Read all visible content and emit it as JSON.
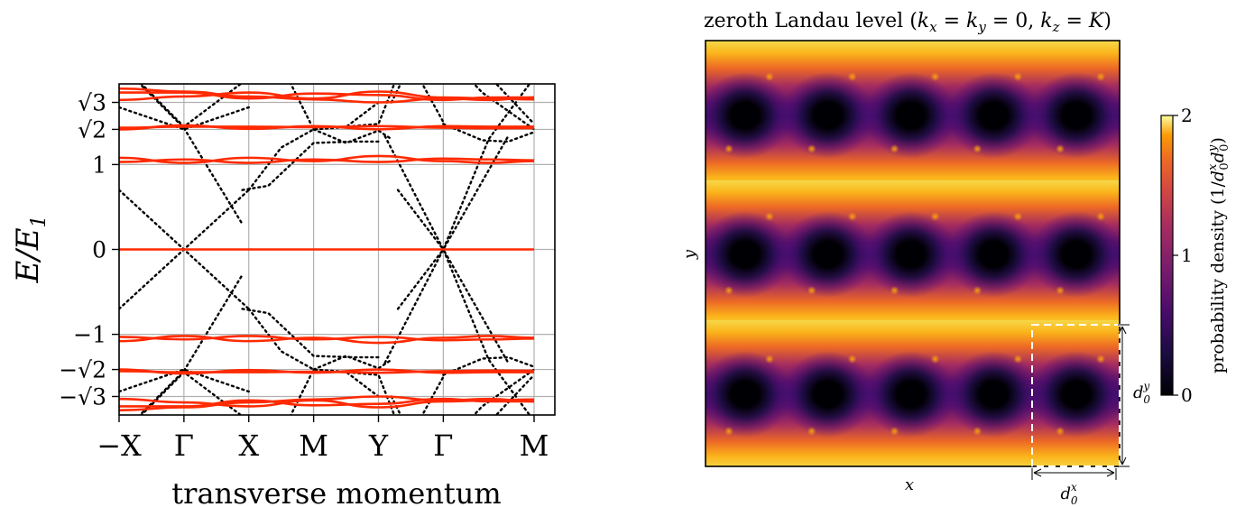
{
  "chart_data": [
    {
      "type": "line",
      "xlabel": "transverse momentum",
      "ylabel": "E/E",
      "ylabel_sub": "1",
      "ylim": [
        -3.45,
        3.45
      ],
      "grid": true,
      "x_ticks": [
        {
          "pos": 0,
          "label": "−X"
        },
        {
          "pos": 1,
          "label": "Γ"
        },
        {
          "pos": 2,
          "label": "X"
        },
        {
          "pos": 3,
          "label": "M"
        },
        {
          "pos": 4,
          "label": "Y"
        },
        {
          "pos": 5,
          "label": "Γ"
        },
        {
          "pos": 6.4,
          "label": "M"
        }
      ],
      "y_ticks": [
        {
          "value": 3,
          "label": "√3"
        },
        {
          "value": 2,
          "label": "√2"
        },
        {
          "value": 1,
          "label": "1"
        },
        {
          "value": 0,
          "label": "0"
        },
        {
          "value": -1,
          "label": "−1"
        },
        {
          "value": -2,
          "label": "−√2"
        },
        {
          "value": -3,
          "label": "−√3"
        }
      ],
      "series": [
        {
          "style": "solid",
          "color": "#ff2a00",
          "lines": [
            {
              "y": [
                3.05,
                3.12,
                3.2,
                3.08,
                3.22,
                3.1,
                3.08,
                3.06
              ],
              "x": [
                0,
                1,
                2,
                3,
                4,
                5,
                5.7,
                6.4
              ]
            },
            {
              "y": [
                3.2,
                3.2,
                3.08,
                3.18,
                3.15,
                3.05,
                3.1,
                3.1
              ],
              "x": [
                0,
                1,
                2,
                3,
                4,
                5,
                5.7,
                6.4
              ]
            },
            {
              "y": [
                3.28,
                3.22,
                3.12,
                3.06,
                3.0,
                3.08,
                3.05,
                3.1
              ],
              "x": [
                0,
                1,
                2,
                3,
                4,
                5,
                5.7,
                6.4
              ]
            },
            {
              "y": [
                2.0,
                2.15,
                2.02,
                2.12,
                2.0,
                2.12,
                2.1,
                2.1
              ],
              "x": [
                0,
                1,
                2,
                3,
                4,
                5,
                5.7,
                6.4
              ]
            },
            {
              "y": [
                2.06,
                2.1,
                2.1,
                2.08,
                2.12,
                2.06,
                2.04,
                2.05
              ],
              "x": [
                0,
                1,
                2,
                3,
                4,
                5,
                5.7,
                6.4
              ]
            },
            {
              "y": [
                1.08,
                1.02,
                1.08,
                1.04,
                1.1,
                1.04,
                1.02,
                1.04
              ],
              "x": [
                0,
                1,
                2,
                3,
                4,
                5,
                5.7,
                6.4
              ]
            },
            {
              "y": [
                1.03,
                1.06,
                1.02,
                1.06,
                1.03,
                1.07,
                1.06,
                1.05
              ],
              "x": [
                0,
                1,
                2,
                3,
                4,
                5,
                5.7,
                6.4
              ]
            },
            {
              "y": [
                0,
                0,
                0,
                0,
                0,
                0,
                0,
                0
              ],
              "x": [
                0,
                1,
                2,
                3,
                4,
                5,
                5.7,
                6.4
              ]
            },
            {
              "y": [
                -1.08,
                -1.02,
                -1.08,
                -1.04,
                -1.1,
                -1.04,
                -1.02,
                -1.04
              ],
              "x": [
                0,
                1,
                2,
                3,
                4,
                5,
                5.7,
                6.4
              ]
            },
            {
              "y": [
                -1.03,
                -1.06,
                -1.02,
                -1.06,
                -1.03,
                -1.07,
                -1.06,
                -1.05
              ],
              "x": [
                0,
                1,
                2,
                3,
                4,
                5,
                5.7,
                6.4
              ]
            },
            {
              "y": [
                -2.0,
                -2.15,
                -2.02,
                -2.12,
                -2.0,
                -2.12,
                -2.1,
                -2.1
              ],
              "x": [
                0,
                1,
                2,
                3,
                4,
                5,
                5.7,
                6.4
              ]
            },
            {
              "y": [
                -2.06,
                -2.1,
                -2.1,
                -2.08,
                -2.12,
                -2.06,
                -2.04,
                -2.05
              ],
              "x": [
                0,
                1,
                2,
                3,
                4,
                5,
                5.7,
                6.4
              ]
            },
            {
              "y": [
                -3.05,
                -3.12,
                -3.2,
                -3.08,
                -3.22,
                -3.1,
                -3.08,
                -3.06
              ],
              "x": [
                0,
                1,
                2,
                3,
                4,
                5,
                5.7,
                6.4
              ]
            },
            {
              "y": [
                -3.2,
                -3.2,
                -3.08,
                -3.18,
                -3.15,
                -3.05,
                -3.1,
                -3.1
              ],
              "x": [
                0,
                1,
                2,
                3,
                4,
                5,
                5.7,
                6.4
              ]
            },
            {
              "y": [
                -3.28,
                -3.22,
                -3.12,
                -3.06,
                -3.0,
                -3.08,
                -3.05,
                -3.1
              ],
              "x": [
                0,
                1,
                2,
                3,
                4,
                5,
                5.7,
                6.4
              ]
            }
          ]
        },
        {
          "style": "dotted",
          "color": "#000000",
          "lines": [
            {
              "x": [
                0,
                1,
                2
              ],
              "y": [
                -0.7,
                0,
                0.7
              ]
            },
            {
              "x": [
                0,
                1,
                2
              ],
              "y": [
                0.7,
                0,
                -0.7
              ]
            },
            {
              "x": [
                0,
                1,
                2
              ],
              "y": [
                -2.9,
                -2.0,
                -2.9
              ]
            },
            {
              "x": [
                0,
                1,
                2
              ],
              "y": [
                2.9,
                2.0,
                2.9
              ]
            },
            {
              "x": [
                0,
                1,
                1.9
              ],
              "y": [
                3.8,
                2.05,
                0.3
              ]
            },
            {
              "x": [
                0,
                1,
                1.9
              ],
              "y": [
                -3.8,
                -2.05,
                -0.3
              ]
            },
            {
              "x": [
                0.1,
                1,
                2,
                2.3
              ],
              "y": [
                -3.7,
                -2.1,
                -3.5,
                -3.9
              ]
            },
            {
              "x": [
                0.1,
                1,
                2,
                2.3
              ],
              "y": [
                3.7,
                2.1,
                3.5,
                3.9
              ]
            },
            {
              "x": [
                1.9,
                2.3,
                3,
                3.6,
                4
              ],
              "y": [
                0.7,
                0.75,
                1.5,
                1.55,
                1.55
              ]
            },
            {
              "x": [
                1.9,
                2.3,
                3,
                3.6,
                4
              ],
              "y": [
                -0.7,
                -0.75,
                -1.5,
                -1.55,
                -1.55
              ]
            },
            {
              "x": [
                2,
                2.5,
                3,
                3.5,
                4
              ],
              "y": [
                0.7,
                1.2,
                2.0,
                2.5,
                3.0
              ]
            },
            {
              "x": [
                2,
                2.5,
                3,
                3.5,
                4
              ],
              "y": [
                -0.7,
                -1.2,
                -2.0,
                -2.5,
                -3.0
              ]
            },
            {
              "x": [
                3,
                3.5,
                4,
                4.2
              ],
              "y": [
                2.0,
                1.5,
                1.4,
                1.3
              ]
            },
            {
              "x": [
                3,
                3.5,
                4,
                4.2
              ],
              "y": [
                -2.0,
                -1.5,
                -1.4,
                -1.3
              ]
            },
            {
              "x": [
                2.45,
                3,
                3.5,
                4,
                4.4
              ],
              "y": [
                3.9,
                2.0,
                2.1,
                2.2,
                3.9
              ]
            },
            {
              "x": [
                2.45,
                3,
                3.5,
                4,
                4.4
              ],
              "y": [
                -3.9,
                -2.0,
                -2.1,
                -2.2,
                -3.9
              ]
            },
            {
              "x": [
                4.1,
                5,
                6
              ],
              "y": [
                -1.75,
                0,
                1.75
              ]
            },
            {
              "x": [
                4.1,
                5,
                6
              ],
              "y": [
                1.75,
                0,
                -1.75
              ]
            },
            {
              "x": [
                4.3,
                5,
                5.7,
                6.4
              ],
              "y": [
                -0.7,
                0,
                1.3,
                3.5
              ]
            },
            {
              "x": [
                4.3,
                5,
                5.7,
                6.4
              ],
              "y": [
                0.7,
                0,
                -1.3,
                -3.5
              ]
            },
            {
              "x": [
                4.2,
                4.5,
                5.0
              ],
              "y": [
                -3.0,
                -3.8,
                -2.6
              ]
            },
            {
              "x": [
                4.2,
                4.5,
                5.0
              ],
              "y": [
                3.0,
                3.8,
                2.6
              ]
            },
            {
              "x": [
                5,
                5.6,
                6.0,
                6.4
              ],
              "y": [
                2.2,
                1.6,
                1.55,
                1.9
              ]
            },
            {
              "x": [
                5,
                5.6,
                6.0,
                6.4
              ],
              "y": [
                -2.2,
                -1.6,
                -1.55,
                -1.9
              ]
            },
            {
              "x": [
                5.1,
                5.6,
                6.4
              ],
              "y": [
                3.9,
                3.2,
                2.0
              ]
            },
            {
              "x": [
                5.1,
                5.6,
                6.4
              ],
              "y": [
                -3.9,
                -3.2,
                -2.0
              ]
            },
            {
              "x": [
                5.3,
                5.8,
                6.4
              ],
              "y": [
                -3.9,
                -3.4,
                -2.2
              ]
            },
            {
              "x": [
                5.3,
                5.8,
                6.4
              ],
              "y": [
                3.9,
                3.4,
                2.2
              ]
            }
          ]
        }
      ]
    },
    {
      "type": "heatmap",
      "title": "zeroth Landau level (k",
      "title_parts": [
        "zeroth Landau level (",
        "k",
        "x",
        " = ",
        "k",
        "y",
        " = 0, ",
        "k",
        "z",
        " = ",
        "K",
        ")"
      ],
      "xlabel": "x",
      "ylabel": "y",
      "colormap": "inferno",
      "grid_cols": 5,
      "grid_rows": 3,
      "colorbar": {
        "min": 0,
        "max": 2,
        "ticks": [
          {
            "value": 0,
            "label": "0"
          },
          {
            "value": 1,
            "label": "1"
          },
          {
            "value": 2,
            "label": "2"
          }
        ],
        "label": "probability density (1/d",
        "label_parts": [
          "probability density (1/",
          "d",
          "x",
          "0",
          "d",
          "y",
          "0",
          ")"
        ]
      },
      "unit_cell_labels": {
        "dx": {
          "base": "d",
          "sup": "x",
          "sub": "0"
        },
        "dy": {
          "base": "d",
          "sup": "y",
          "sub": "0"
        }
      }
    }
  ]
}
